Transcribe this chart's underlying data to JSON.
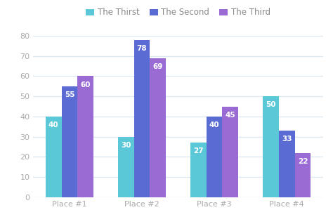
{
  "categories": [
    "Place #1",
    "Place #2",
    "Place #3",
    "Place #4"
  ],
  "series": [
    {
      "label": "The Thirst",
      "values": [
        40,
        30,
        27,
        50
      ],
      "color": "#5BC8D8"
    },
    {
      "label": "The Second",
      "values": [
        55,
        78,
        40,
        33
      ],
      "color": "#5B6BD4"
    },
    {
      "label": "The Third",
      "values": [
        60,
        69,
        45,
        22
      ],
      "color": "#9B6BD4"
    }
  ],
  "ylim": [
    0,
    80
  ],
  "yticks": [
    0,
    10,
    20,
    30,
    40,
    50,
    60,
    70,
    80
  ],
  "background_color": "#ffffff",
  "plot_bg_color": "#ffffff",
  "grid_color": "#dde8f0",
  "bar_width": 0.22,
  "value_fontsize": 7.5,
  "value_color": "#ffffff",
  "legend_fontsize": 8.5,
  "tick_fontsize": 8,
  "tick_color": "#aaaaaa",
  "figsize": [
    4.74,
    3.19
  ],
  "dpi": 100
}
